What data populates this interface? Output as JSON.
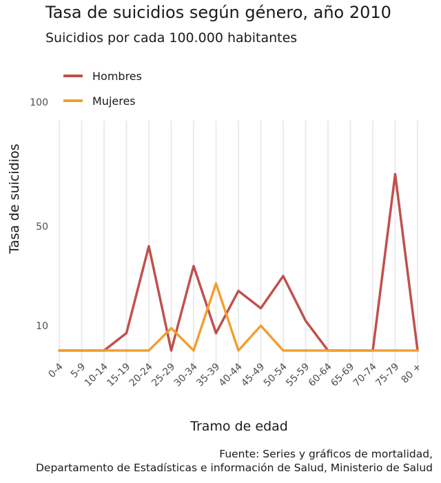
{
  "chart_data": {
    "type": "line",
    "title": "Tasa de suicidios según género, año 2010",
    "subtitle": "Suicidios por cada 100.000 habitantes",
    "xlabel": "Tramo de edad",
    "ylabel": "Tasa de suicidios",
    "categories": [
      "0-4",
      "5-9",
      "10-14",
      "15-19",
      "20-24",
      "25-29",
      "30-34",
      "35-39",
      "40-44",
      "45-49",
      "50-54",
      "55-59",
      "60-64",
      "65-69",
      "70-74",
      "75-79",
      "80 +"
    ],
    "y_ticks": [
      "10",
      "50",
      "100"
    ],
    "ylim": [
      0,
      100
    ],
    "grid": "vertical",
    "legend_position": "top-left",
    "series": [
      {
        "name": "Hombres",
        "color": "#c0504d",
        "values": [
          0,
          0,
          0,
          7,
          42,
          0,
          34,
          7,
          24,
          17,
          30,
          12,
          0,
          0,
          0,
          71,
          0
        ]
      },
      {
        "name": "Mujeres",
        "color": "#f0a030",
        "values": [
          0,
          0,
          0,
          0,
          0,
          9,
          0,
          27,
          0,
          10,
          0,
          0,
          0,
          0,
          0,
          0,
          0
        ]
      }
    ],
    "caption_lines": [
      "Fuente: Series y gráficos de mortalidad,",
      "Departamento de Estadísticas e información de Salud, Ministerio de Salud"
    ]
  }
}
